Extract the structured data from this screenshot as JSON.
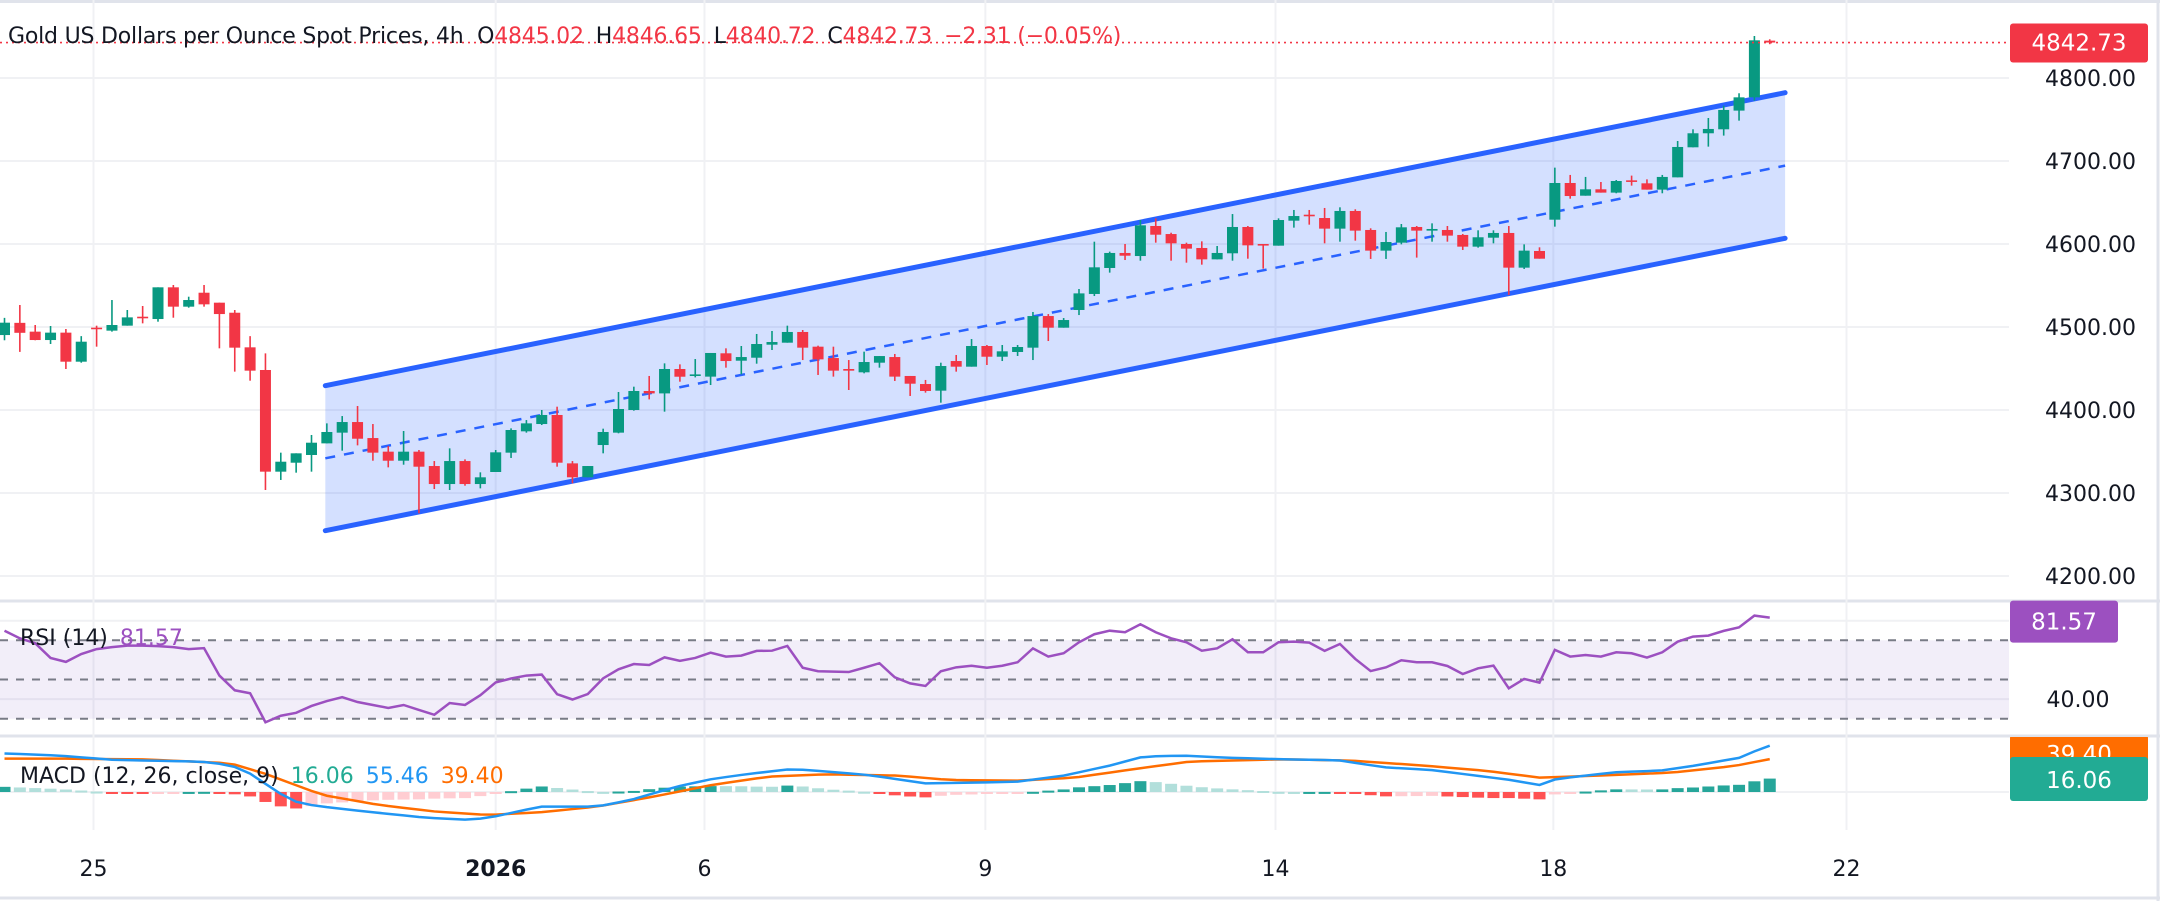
{
  "header": {
    "title": "Gold US Dollars per Ounce Spot Prices, 4h",
    "open_label": "O",
    "open": "4845.02",
    "high_label": "H",
    "high": "4846.65",
    "low_label": "L",
    "low": "4840.72",
    "close_label": "C",
    "close": "4842.73",
    "change": "−2.31 (−0.05%)"
  },
  "price_axis": {
    "labels": [
      "4800.00",
      "4700.00",
      "4600.00",
      "4500.00",
      "4400.00",
      "4300.00",
      "4200.00"
    ],
    "last_price": "4842.73",
    "last_price_color": "#F23645"
  },
  "rsi": {
    "label": "RSI (14)",
    "value": "81.57",
    "axis_label": "40.00",
    "color": "#9C50C0"
  },
  "macd": {
    "label": "MACD (12, 26, close, 9)",
    "histogram_value": "16.06",
    "macd_value": "55.46",
    "signal_value": "39.40",
    "histogram_color": "#22AB94",
    "macd_color": "#2196F3",
    "signal_color": "#FF6D00"
  },
  "time_axis": {
    "labels": [
      "25",
      "2026",
      "6",
      "9",
      "14",
      "18",
      "22"
    ]
  },
  "chart_data": {
    "type": "candlestick",
    "timeframe": "4h",
    "ylim": [
      4170,
      4872
    ],
    "y_ticks": [
      4800,
      4700,
      4600,
      4500,
      4400,
      4300,
      4200
    ],
    "x_ticks": [
      {
        "label": "25",
        "bar": 5.8,
        "bold": false
      },
      {
        "label": "2026",
        "bar": 32.0,
        "bold": true
      },
      {
        "label": "6",
        "bar": 45.6,
        "bold": false
      },
      {
        "label": "9",
        "bar": 63.9,
        "bold": false
      },
      {
        "label": "14",
        "bar": 82.8,
        "bold": false
      },
      {
        "label": "18",
        "bar": 100.9,
        "bold": false
      },
      {
        "label": "22",
        "bar": 120.0,
        "bold": false
      }
    ],
    "grid": true,
    "up_color": "#089981",
    "down_color": "#F23645",
    "ohlc": [
      [
        4490.3,
        4511,
        4484,
        4505.2
      ],
      [
        4505,
        4526.5,
        4470,
        4493
      ],
      [
        4494.4,
        4502.4,
        4484,
        4484.3
      ],
      [
        4484.3,
        4501.2,
        4479.5,
        4493.2
      ],
      [
        4493.2,
        4497.6,
        4449.4,
        4458.2
      ],
      [
        4458.2,
        4489,
        4457,
        4482.3
      ],
      [
        4499.2,
        4501.6,
        4476.3,
        4497.6
      ],
      [
        4495.6,
        4532.5,
        4494.4,
        4502.4
      ],
      [
        4501.6,
        4520.5,
        4501.6,
        4511.6
      ],
      [
        4512.4,
        4525.3,
        4504.4,
        4511.6
      ],
      [
        4509.6,
        4547.8,
        4506.4,
        4547.8
      ],
      [
        4547.8,
        4550.6,
        4511.2,
        4524.5
      ],
      [
        4524.5,
        4536.5,
        4523.3,
        4532.5
      ],
      [
        4541.3,
        4550.6,
        4524.5,
        4527.3
      ],
      [
        4529.3,
        4529.3,
        4474.3,
        4515.6
      ],
      [
        4517.2,
        4520.5,
        4446.2,
        4475.1
      ],
      [
        4475.5,
        4489,
        4435.3,
        4447.4
      ],
      [
        4448.2,
        4468.2,
        4303.6,
        4325.7
      ],
      [
        4325.7,
        4348.6,
        4315.7,
        4337.7
      ],
      [
        4336.5,
        4347.8,
        4324.5,
        4347.8
      ],
      [
        4345.8,
        4369.9,
        4325.7,
        4360.6
      ],
      [
        4359.8,
        4383.9,
        4359.8,
        4373.5
      ],
      [
        4372.7,
        4392.7,
        4351,
        4385.5
      ],
      [
        4385.5,
        4404.8,
        4357.4,
        4365.4
      ],
      [
        4366.2,
        4383.1,
        4338.9,
        4348.6
      ],
      [
        4349.8,
        4356.6,
        4330.9,
        4338.9
      ],
      [
        4338.9,
        4374.7,
        4334.1,
        4349.8
      ],
      [
        4349.8,
        4351.8,
        4275.5,
        4331.7
      ],
      [
        4332.5,
        4338.5,
        4304.8,
        4310.8
      ],
      [
        4310.8,
        4353.8,
        4303.6,
        4338.5
      ],
      [
        4338.5,
        4340.5,
        4308.8,
        4310.8
      ],
      [
        4310.8,
        4324.9,
        4305.6,
        4318.9
      ],
      [
        4325.3,
        4351.8,
        4325.3,
        4349
      ],
      [
        4348.6,
        4377.9,
        4342.2,
        4375.9
      ],
      [
        4374.3,
        4387.9,
        4372.7,
        4383.9
      ],
      [
        4383.1,
        4400,
        4381.9,
        4394
      ],
      [
        4394,
        4404,
        4331.7,
        4336.5
      ],
      [
        4335.7,
        4338.5,
        4311.6,
        4318.9
      ],
      [
        4318.9,
        4332.5,
        4318.9,
        4332.5
      ],
      [
        4357.8,
        4377.5,
        4347.8,
        4373.5
      ],
      [
        4372.7,
        4421.7,
        4371.9,
        4401.2
      ],
      [
        4400,
        4428.1,
        4399.2,
        4422.9
      ],
      [
        4422.9,
        4441,
        4412.8,
        4420
      ],
      [
        4420,
        4456.2,
        4398,
        4449.4
      ],
      [
        4449.4,
        4455,
        4434.1,
        4440.1
      ],
      [
        4441,
        4461.4,
        4439.3,
        4442.9
      ],
      [
        4440.2,
        4468.7,
        4430.1,
        4468.7
      ],
      [
        4468.3,
        4474.3,
        4451,
        4459
      ],
      [
        4459.4,
        4477.1,
        4443,
        4463.8
      ],
      [
        4463,
        4491.6,
        4455.8,
        4479.5
      ],
      [
        4478.7,
        4495.2,
        4472.3,
        4481.9
      ],
      [
        4481.1,
        4501.6,
        4481.1,
        4494
      ],
      [
        4494,
        4496.4,
        4460.2,
        4475.1
      ],
      [
        4476.3,
        4477.5,
        4442.2,
        4461
      ],
      [
        4462.6,
        4476.3,
        4440.2,
        4447.4
      ],
      [
        4449.4,
        4460.2,
        4424.1,
        4447.4
      ],
      [
        4445.4,
        4470.3,
        4444.2,
        4457.8
      ],
      [
        4457,
        4465,
        4451,
        4465
      ],
      [
        4463.8,
        4467.5,
        4435,
        4440.2
      ],
      [
        4441,
        4441,
        4416.9,
        4431.7
      ],
      [
        4431.3,
        4436.2,
        4420.9,
        4422.9
      ],
      [
        4423.3,
        4457,
        4408.8,
        4453
      ],
      [
        4459,
        4466.3,
        4446.2,
        4452.2
      ],
      [
        4452.2,
        4485.5,
        4452.2,
        4477.1
      ],
      [
        4477.1,
        4478.3,
        4454.2,
        4464.2
      ],
      [
        4464.2,
        4478.3,
        4459,
        4470.7
      ],
      [
        4469.9,
        4478.3,
        4465.1,
        4475.9
      ],
      [
        4475.1,
        4518.1,
        4460.2,
        4513.2
      ],
      [
        4513.2,
        4515.6,
        4483.1,
        4499.2
      ],
      [
        4499.2,
        4510.8,
        4499.2,
        4508.4
      ],
      [
        4520.5,
        4545.8,
        4514.4,
        4540.5
      ],
      [
        4539.8,
        4602.8,
        4537.3,
        4571.9
      ],
      [
        4571.1,
        4590.8,
        4565.5,
        4589.2
      ],
      [
        4589.2,
        4600,
        4580.7,
        4585.9
      ],
      [
        4585.5,
        4628.9,
        4579.9,
        4622.5
      ],
      [
        4621.7,
        4630.9,
        4601.6,
        4611.2
      ],
      [
        4612,
        4613.6,
        4579.9,
        4600.8
      ],
      [
        4600,
        4601.6,
        4577.5,
        4594.4
      ],
      [
        4595.2,
        4603.2,
        4575.1,
        4581.5
      ],
      [
        4581.5,
        4597.6,
        4581.5,
        4589.2
      ],
      [
        4588.8,
        4636.1,
        4579.9,
        4620.5
      ],
      [
        4620.5,
        4621.7,
        4582.3,
        4598.4
      ],
      [
        4600,
        4600,
        4570.3,
        4598.4
      ],
      [
        4598,
        4630.9,
        4598,
        4628.9
      ],
      [
        4628.1,
        4641,
        4619.7,
        4633.7
      ],
      [
        4635.3,
        4641,
        4623.3,
        4633.7
      ],
      [
        4631.3,
        4643.4,
        4600.8,
        4618.5
      ],
      [
        4618.5,
        4644.2,
        4602.8,
        4639.8
      ],
      [
        4639.8,
        4641.8,
        4604,
        4616.1
      ],
      [
        4616.9,
        4618.9,
        4582,
        4592
      ],
      [
        4592,
        4614.5,
        4582,
        4602.4
      ],
      [
        4601.6,
        4624.1,
        4599.6,
        4620.1
      ],
      [
        4620.5,
        4621.7,
        4583.6,
        4616.1
      ],
      [
        4616.1,
        4624.9,
        4602.8,
        4618.1
      ],
      [
        4616.9,
        4621.7,
        4602.8,
        4610.1
      ],
      [
        4610.9,
        4612.1,
        4592.8,
        4596.8
      ],
      [
        4596.8,
        4616.5,
        4595.6,
        4608.1
      ],
      [
        4607.6,
        4616.5,
        4600.8,
        4613.3
      ],
      [
        4613.3,
        4621.7,
        4538.6,
        4571.5
      ],
      [
        4571.5,
        4599.6,
        4569.9,
        4592
      ],
      [
        4591.6,
        4596,
        4582.3,
        4582.3
      ],
      [
        4629.3,
        4692,
        4620.9,
        4673.5
      ],
      [
        4673.5,
        4683.2,
        4654.6,
        4657.8
      ],
      [
        4658.2,
        4680.8,
        4658.2,
        4665.9
      ],
      [
        4665.9,
        4674.7,
        4661.9,
        4661.9
      ],
      [
        4661.9,
        4677.1,
        4661.1,
        4675.9
      ],
      [
        4676.7,
        4682.4,
        4670.3,
        4675.1
      ],
      [
        4673.1,
        4677.9,
        4665.5,
        4665.5
      ],
      [
        4665.5,
        4683.2,
        4661.1,
        4680.8
      ],
      [
        4680.3,
        4724.1,
        4680.3,
        4716.9
      ],
      [
        4716.5,
        4738.2,
        4716.5,
        4733.4
      ],
      [
        4733.4,
        4751.8,
        4717.3,
        4738.6
      ],
      [
        4738.2,
        4766.7,
        4730.6,
        4761.5
      ],
      [
        4760.7,
        4781.6,
        4748.6,
        4776.7
      ],
      [
        4776.7,
        4850.6,
        4772.7,
        4845.4
      ],
      [
        4845.02,
        4846.65,
        4840.72,
        4842.73
      ]
    ],
    "channel": {
      "color": "#2962FF",
      "upper": [
        [
          20.9,
          4429.3
        ],
        [
          116,
          4782.3
        ]
      ],
      "lower": [
        [
          20.9,
          4254.6
        ],
        [
          116,
          4606.9
        ]
      ],
      "middle_dashed": [
        [
          20.9,
          4341.8
        ],
        [
          116,
          4694.4
        ]
      ]
    },
    "rsi": {
      "levels": [
        70,
        50,
        30
      ],
      "values": [
        74.9,
        71,
        68.5,
        61,
        59,
        63,
        65.5,
        66.5,
        67.3,
        67.3,
        67,
        66.5,
        65.5,
        66,
        52,
        44.5,
        43,
        28.2,
        31.5,
        33,
        36.5,
        39,
        41,
        38.5,
        37,
        35.5,
        37,
        34.5,
        32,
        38,
        37,
        42,
        48.5,
        50.5,
        52,
        52.5,
        42.5,
        39.8,
        42.6,
        50.6,
        55.2,
        57.9,
        57.4,
        61.3,
        59.5,
        61,
        63.7,
        61.7,
        62.2,
        64.6,
        64.7,
        67.1,
        56,
        54.2,
        54,
        53.8,
        56,
        58.3,
        51.1,
        48,
        46.7,
        54.2,
        56.2,
        57,
        56,
        57,
        58.8,
        65.9,
        61.7,
        63.4,
        69,
        73.1,
        74.9,
        74.1,
        78.2,
        74.1,
        71,
        69,
        64.7,
        65.9,
        70.5,
        63.9,
        63.9,
        69,
        69.3,
        68.8,
        64.6,
        68.1,
        60.5,
        54.3,
        56.2,
        59.8,
        58.8,
        58.8,
        56.9,
        52.8,
        55.7,
        57.1,
        45.5,
        50.3,
        48.4,
        65.1,
        61.7,
        62.5,
        61.7,
        63.9,
        63.4,
        61.2,
        63.9,
        69.3,
        71.9,
        72.4,
        74.8,
        76.6,
        82.6,
        81.57
      ]
    },
    "macd": {
      "macd_line": [
        [
          -0.3,
          46.4
        ],
        [
          3.5,
          43.6
        ],
        [
          7.2,
          38.4
        ],
        [
          12.8,
          36.4
        ],
        [
          14.7,
          32.4
        ],
        [
          16.2,
          20.4
        ],
        [
          17.7,
          0.5
        ],
        [
          19.2,
          -13.5
        ],
        [
          20.7,
          -17.5
        ],
        [
          23.6,
          -23.5
        ],
        [
          27.4,
          -30.7
        ],
        [
          30.4,
          -33.4
        ],
        [
          31.9,
          -29.5
        ],
        [
          34.9,
          -17.5
        ],
        [
          38.6,
          -17.5
        ],
        [
          40.8,
          -9.5
        ],
        [
          43.8,
          6.5
        ],
        [
          46.1,
          15.6
        ],
        [
          48.3,
          21.2
        ],
        [
          51.3,
          27.6
        ],
        [
          53.6,
          24.4
        ],
        [
          55.8,
          21.2
        ],
        [
          57,
          18.4
        ],
        [
          60,
          10.4
        ],
        [
          63,
          11.2
        ],
        [
          66,
          12.4
        ],
        [
          69,
          19.6
        ],
        [
          72,
          31.6
        ],
        [
          74.2,
          42.4
        ],
        [
          76.8,
          43.6
        ],
        [
          79.4,
          41.2
        ],
        [
          83.2,
          39.2
        ],
        [
          86.9,
          38
        ],
        [
          89.9,
          29.6
        ],
        [
          92.9,
          26.4
        ],
        [
          95.9,
          19.6
        ],
        [
          98.1,
          14.4
        ],
        [
          100,
          8.4
        ],
        [
          101.1,
          15.6
        ],
        [
          104.9,
          23.6
        ],
        [
          107.9,
          25.6
        ],
        [
          110.1,
          31.6
        ],
        [
          113.1,
          41.2
        ],
        [
          114.2,
          50.3
        ],
        [
          115,
          55.46
        ]
      ],
      "signal_line": [
        [
          -0.3,
          40
        ],
        [
          3.5,
          40
        ],
        [
          9.1,
          39
        ],
        [
          14.7,
          34.4
        ],
        [
          16.9,
          22.4
        ],
        [
          20.7,
          -3.5
        ],
        [
          24.4,
          -15.5
        ],
        [
          28.1,
          -23.5
        ],
        [
          31.5,
          -27.5
        ],
        [
          34.9,
          -24.3
        ],
        [
          38.6,
          -17.5
        ],
        [
          42.3,
          -5.5
        ],
        [
          46.1,
          8.5
        ],
        [
          49.8,
          18.4
        ],
        [
          53.6,
          21.2
        ],
        [
          58.3,
          19.6
        ],
        [
          61.5,
          14.4
        ],
        [
          66,
          13.6
        ],
        [
          69.7,
          17.2
        ],
        [
          73.5,
          27.2
        ],
        [
          77.2,
          36.4
        ],
        [
          83.2,
          39.2
        ],
        [
          87.7,
          37.6
        ],
        [
          92.5,
          31.6
        ],
        [
          96.6,
          25.2
        ],
        [
          100,
          17.2
        ],
        [
          103.8,
          19.6
        ],
        [
          108.6,
          23.2
        ],
        [
          112.7,
          31.2
        ],
        [
          115,
          39.4
        ]
      ]
    }
  }
}
